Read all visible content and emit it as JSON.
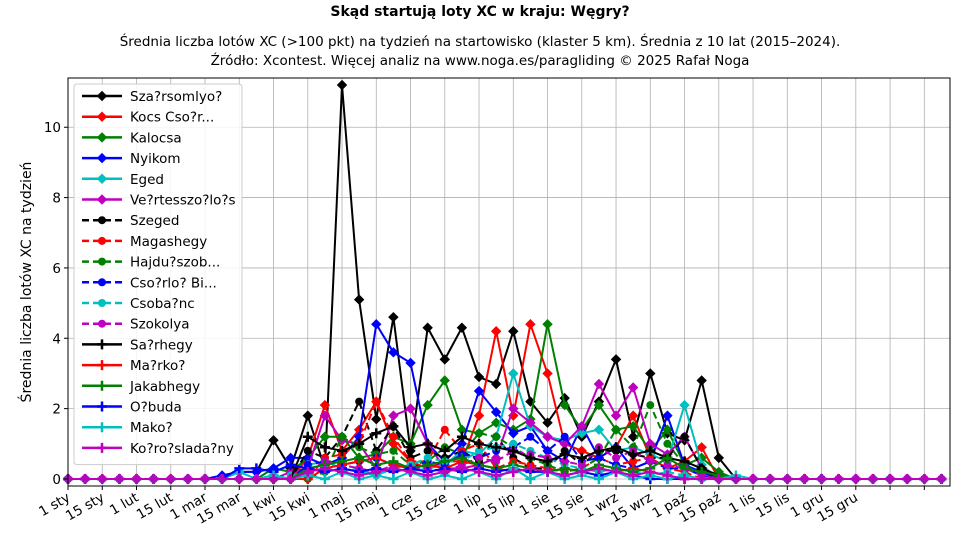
{
  "chart_data": {
    "type": "line",
    "title": "Skąd startują loty XC w kraju: Węgry?",
    "subtitle_lines": [
      "Średnia liczba lotów XC (>100 pkt) na tydzień na startowisko (klaster 5 km). Średnia z 10 lat (2015–2024).",
      "Źródło: Xcontest. Więcej analiz na www.noga.es/paragliding © 2025 Rafał Noga"
    ],
    "xlabel": "",
    "ylabel": "Średnia liczba lotów XC na tydzień",
    "xlim": [
      0,
      51.5
    ],
    "ylim": [
      -0.2,
      11.4
    ],
    "yticks": [
      0,
      2,
      4,
      6,
      8,
      10
    ],
    "xtick_positions": [
      0,
      2,
      4,
      6,
      8,
      10,
      12,
      14,
      16,
      18,
      20,
      22,
      24,
      26,
      28,
      30,
      32,
      34,
      36,
      38,
      40,
      42,
      44,
      46,
      48,
      50
    ],
    "xtick_labels": [
      "1 sty",
      "15 sty",
      "1 lut",
      "15 lut",
      "1 mar",
      "15 mar",
      "1 kwi",
      "15 kwi",
      "1 maj",
      "15 maj",
      "1 cze",
      "15 cze",
      "1 lip",
      "15 lip",
      "1 sie",
      "15 sie",
      "1 wrz",
      "15 wrz",
      "1 paź",
      "15 paź",
      "1 lis",
      "15 lis",
      "1 gru",
      "15 gru",
      "",
      ""
    ],
    "legend_position": "top-left",
    "grid": true,
    "weeks": 52,
    "series": [
      {
        "name": "Sza?rsomlyo?",
        "color": "#000000",
        "style": "solid",
        "marker": "diamond",
        "nz": {
          "10": 0.2,
          "11": 0.2,
          "12": 1.1,
          "13": 0.3,
          "14": 1.8,
          "15": 0.3,
          "16": 11.2,
          "17": 5.1,
          "18": 1.7,
          "19": 4.6,
          "20": 0.8,
          "21": 4.3,
          "22": 3.4,
          "23": 4.3,
          "24": 2.9,
          "25": 2.7,
          "26": 4.2,
          "27": 2.2,
          "28": 1.6,
          "29": 2.3,
          "30": 1.2,
          "31": 2.2,
          "32": 3.4,
          "33": 1.2,
          "34": 3.0,
          "35": 1.3,
          "36": 1.1,
          "37": 2.8,
          "38": 0.6
        }
      },
      {
        "name": "Kocs Cso?r...",
        "color": "#ff0000",
        "style": "solid",
        "marker": "diamond",
        "nz": {
          "14": 0.6,
          "15": 2.1,
          "16": 0.8,
          "17": 1.4,
          "18": 2.2,
          "19": 1.0,
          "20": 0.5,
          "21": 0.3,
          "22": 0.5,
          "23": 0.5,
          "24": 1.8,
          "25": 4.2,
          "26": 1.8,
          "27": 4.4,
          "28": 3.0,
          "29": 1.0,
          "30": 0.8,
          "31": 0.6,
          "32": 0.9,
          "33": 1.8,
          "34": 0.6,
          "35": 0.3,
          "36": 0.5,
          "37": 0.9
        }
      },
      {
        "name": "Kalocsa",
        "color": "#008000",
        "style": "solid",
        "marker": "diamond",
        "nz": {
          "12": 0.3,
          "13": 0.2,
          "14": 0.6,
          "15": 1.2,
          "16": 1.2,
          "17": 0.6,
          "18": 0.7,
          "19": 1.2,
          "20": 1.0,
          "21": 2.1,
          "22": 2.8,
          "23": 1.4,
          "24": 1.3,
          "25": 1.6,
          "26": 1.4,
          "27": 1.7,
          "28": 4.4,
          "29": 2.1,
          "30": 1.4,
          "31": 2.1,
          "32": 1.4,
          "33": 1.5,
          "34": 0.8,
          "35": 1.4,
          "36": 0.4,
          "37": 0.6,
          "38": 0.2
        }
      },
      {
        "name": "Nyikom",
        "color": "#0000ff",
        "style": "solid",
        "marker": "diamond",
        "nz": {
          "9": 0.1,
          "10": 0.2,
          "11": 0.2,
          "12": 0.3,
          "13": 0.6,
          "14": 0.6,
          "15": 0.4,
          "16": 0.6,
          "17": 1.2,
          "18": 4.4,
          "19": 3.6,
          "20": 3.3,
          "21": 1.0,
          "22": 0.5,
          "23": 1.0,
          "24": 2.5,
          "25": 1.9,
          "26": 1.3,
          "27": 1.5,
          "28": 0.8,
          "29": 0.5,
          "30": 1.5,
          "31": 0.6,
          "32": 0.9,
          "33": 0.3,
          "34": 0.5,
          "35": 1.8,
          "36": 0.4,
          "37": 0.2
        }
      },
      {
        "name": "Eged",
        "color": "#00bfbf",
        "style": "solid",
        "marker": "diamond",
        "nz": {
          "10": 0.2,
          "12": 0.1,
          "14": 0.4,
          "15": 0.5,
          "16": 0.3,
          "17": 0.2,
          "18": 0.1,
          "19": 0.3,
          "20": 0.2,
          "21": 0.3,
          "22": 0.4,
          "23": 0.8,
          "24": 0.7,
          "25": 1.2,
          "26": 3.0,
          "27": 1.5,
          "28": 1.2,
          "29": 1.1,
          "30": 1.3,
          "31": 1.4,
          "32": 0.8,
          "33": 0.9,
          "34": 0.7,
          "35": 0.5,
          "36": 2.1,
          "37": 0.4
        }
      },
      {
        "name": "Ve?rtesszo?lo?s",
        "color": "#bf00bf",
        "style": "solid",
        "marker": "diamond",
        "nz": {
          "13": 0.2,
          "14": 0.3,
          "15": 1.8,
          "16": 1.1,
          "17": 1.0,
          "18": 0.3,
          "19": 1.8,
          "20": 2.0,
          "21": 1.0,
          "22": 0.3,
          "23": 0.3,
          "24": 0.4,
          "25": 0.6,
          "26": 2.0,
          "27": 1.6,
          "28": 1.2,
          "29": 1.0,
          "30": 1.5,
          "31": 2.7,
          "32": 1.8,
          "33": 2.6,
          "34": 1.0,
          "35": 0.7,
          "36": 1.2,
          "37": 0.3
        }
      },
      {
        "name": "Szeged",
        "color": "#000000",
        "style": "dashed",
        "marker": "circle",
        "nz": {
          "14": 0.8,
          "15": 0.6,
          "16": 1.2,
          "17": 2.2,
          "18": 0.8,
          "19": 1.5,
          "20": 0.6,
          "21": 0.8,
          "22": 0.6,
          "23": 0.8,
          "24": 0.5,
          "25": 1.2,
          "26": 0.6,
          "27": 0.3,
          "28": 0.3,
          "29": 0.8,
          "30": 0.4,
          "31": 0.8,
          "32": 0.8,
          "33": 0.7,
          "34": 0.6,
          "35": 0.6,
          "36": 1.2,
          "37": 0.3
        }
      },
      {
        "name": "Magashegy",
        "color": "#ff0000",
        "style": "dashed",
        "marker": "circle",
        "nz": {
          "15": 0.6,
          "16": 0.7,
          "17": 1.0,
          "18": 2.2,
          "19": 1.2,
          "20": 0.5,
          "21": 0.5,
          "22": 1.4,
          "23": 0.8,
          "24": 1.0,
          "25": 0.3,
          "26": 0.5,
          "27": 0.4,
          "28": 0.3,
          "29": 0.2,
          "30": 0.3,
          "31": 0.6,
          "32": 0.4,
          "33": 0.5,
          "34": 0.6,
          "35": 0.3,
          "36": 0.2
        }
      },
      {
        "name": "Hajdu?szob...",
        "color": "#008000",
        "style": "dashed",
        "marker": "circle",
        "nz": {
          "15": 0.2,
          "16": 1.2,
          "17": 0.9,
          "18": 0.7,
          "19": 0.8,
          "20": 0.4,
          "21": 0.5,
          "22": 0.9,
          "23": 0.7,
          "24": 1.3,
          "25": 1.2,
          "26": 0.9,
          "27": 0.6,
          "28": 0.4,
          "29": 0.2,
          "30": 0.3,
          "31": 0.6,
          "32": 1.4,
          "33": 0.9,
          "34": 2.1,
          "35": 1.0,
          "36": 0.4,
          "37": 0.1
        }
      },
      {
        "name": "Cso?rlo? Bi...",
        "color": "#0000ff",
        "style": "dashed",
        "marker": "circle",
        "nz": {
          "14": 0.4,
          "15": 0.5,
          "16": 0.4,
          "17": 0.5,
          "18": 0.6,
          "19": 0.4,
          "20": 0.3,
          "21": 0.5,
          "22": 0.4,
          "23": 0.7,
          "24": 0.6,
          "25": 0.8,
          "26": 0.9,
          "27": 1.2,
          "28": 0.8,
          "29": 1.2,
          "30": 0.5,
          "31": 0.6,
          "32": 0.4,
          "33": 0.3,
          "34": 0.5,
          "35": 0.3,
          "36": 0.3,
          "37": 0.1
        }
      },
      {
        "name": "Csoba?nc",
        "color": "#00bfbf",
        "style": "dashed",
        "marker": "circle",
        "nz": {
          "13": 0.1,
          "14": 0.2,
          "15": 0.3,
          "16": 0.2,
          "17": 0.3,
          "18": 0.1,
          "19": 0.3,
          "20": 0.4,
          "21": 0.6,
          "22": 0.5,
          "23": 0.5,
          "24": 0.8,
          "25": 0.9,
          "26": 1.0,
          "27": 0.8,
          "28": 0.6,
          "29": 0.4,
          "30": 0.3,
          "31": 0.2,
          "32": 0.3,
          "33": 0.2,
          "34": 0.1,
          "35": 0.2,
          "36": 0.1
        }
      },
      {
        "name": "Szokolya",
        "color": "#bf00bf",
        "style": "dashed",
        "marker": "circle",
        "nz": {
          "14": 0.2,
          "15": 0.5,
          "16": 0.4,
          "17": 0.3,
          "18": 0.2,
          "19": 0.4,
          "20": 0.3,
          "21": 0.3,
          "22": 0.2,
          "23": 0.4,
          "24": 0.6,
          "25": 0.5,
          "26": 0.8,
          "27": 0.7,
          "28": 0.6,
          "29": 0.5,
          "30": 0.4,
          "31": 0.9,
          "32": 0.6,
          "33": 0.8,
          "34": 0.5,
          "35": 0.4,
          "36": 0.3,
          "37": 0.1
        }
      },
      {
        "name": "Sa?rhegy",
        "color": "#000000",
        "style": "solid",
        "marker": "plus",
        "nz": {
          "14": 1.2,
          "15": 0.9,
          "16": 0.8,
          "17": 1.0,
          "18": 1.3,
          "19": 1.5,
          "20": 0.9,
          "21": 1.0,
          "22": 0.8,
          "23": 1.2,
          "24": 1.0,
          "25": 0.9,
          "26": 0.8,
          "27": 0.6,
          "28": 0.5,
          "29": 0.7,
          "30": 0.6,
          "31": 0.8,
          "32": 0.9,
          "33": 0.7,
          "34": 0.8,
          "35": 0.6,
          "36": 0.5,
          "37": 0.3,
          "38": 0.1
        }
      },
      {
        "name": "Ma?rko?",
        "color": "#ff0000",
        "style": "solid",
        "marker": "plus",
        "nz": {
          "15": 0.3,
          "16": 0.4,
          "17": 0.5,
          "18": 0.6,
          "19": 0.4,
          "20": 0.3,
          "21": 0.4,
          "22": 0.3,
          "23": 0.5,
          "24": 0.4,
          "25": 0.3,
          "26": 0.2,
          "27": 0.3,
          "28": 0.2,
          "29": 0.3,
          "30": 0.2,
          "31": 0.3,
          "32": 0.2,
          "33": 0.3,
          "34": 0.2,
          "35": 0.1
        }
      },
      {
        "name": "Jakabhegy",
        "color": "#008000",
        "style": "solid",
        "marker": "plus",
        "nz": {
          "14": 0.3,
          "15": 0.4,
          "16": 0.5,
          "17": 0.6,
          "18": 0.4,
          "19": 0.5,
          "20": 0.3,
          "21": 0.4,
          "22": 0.5,
          "23": 0.6,
          "24": 0.4,
          "25": 0.3,
          "26": 0.4,
          "27": 0.3,
          "28": 0.2,
          "29": 0.3,
          "30": 0.2,
          "31": 0.4,
          "32": 0.3,
          "33": 0.2,
          "34": 0.3,
          "35": 0.6,
          "36": 0.3,
          "37": 0.2,
          "38": 0.1
        }
      },
      {
        "name": "O?buda",
        "color": "#0000ff",
        "style": "solid",
        "marker": "plus",
        "nz": {
          "10": 0.3,
          "11": 0.3,
          "12": 0.2,
          "13": 0.4,
          "14": 0.3,
          "15": 0.2,
          "16": 0.3,
          "17": 0.2,
          "18": 0.3,
          "19": 0.2,
          "20": 0.3,
          "21": 0.2,
          "22": 0.3,
          "23": 0.2,
          "24": 0.3,
          "25": 0.2,
          "26": 0.3,
          "27": 0.2,
          "28": 0.2,
          "29": 0.1,
          "30": 0.2,
          "31": 0.1,
          "32": 0.2,
          "33": 0.1
        }
      },
      {
        "name": "Mako?",
        "color": "#00bfbf",
        "style": "solid",
        "marker": "plus",
        "nz": {
          "12": 0.1,
          "14": 0.1,
          "16": 0.2,
          "18": 0.1,
          "20": 0.2,
          "22": 0.1,
          "24": 0.2,
          "26": 0.3,
          "28": 0.2,
          "30": 0.1,
          "32": 0.2,
          "34": 0.1,
          "36": 0.1,
          "39": 0.1
        }
      },
      {
        "name": "Ko?ro?slada?ny",
        "color": "#bf00bf",
        "style": "solid",
        "marker": "plus",
        "nz": {
          "14": 0.2,
          "15": 0.3,
          "16": 0.2,
          "17": 0.1,
          "18": 0.2,
          "19": 0.3,
          "20": 0.2,
          "21": 0.1,
          "22": 0.2,
          "23": 0.3,
          "24": 0.2,
          "25": 0.1,
          "26": 0.2,
          "27": 0.3,
          "28": 0.2,
          "29": 0.1,
          "30": 0.2,
          "31": 0.3,
          "32": 0.2,
          "33": 0.1,
          "34": 0.2,
          "35": 0.1
        }
      }
    ]
  }
}
